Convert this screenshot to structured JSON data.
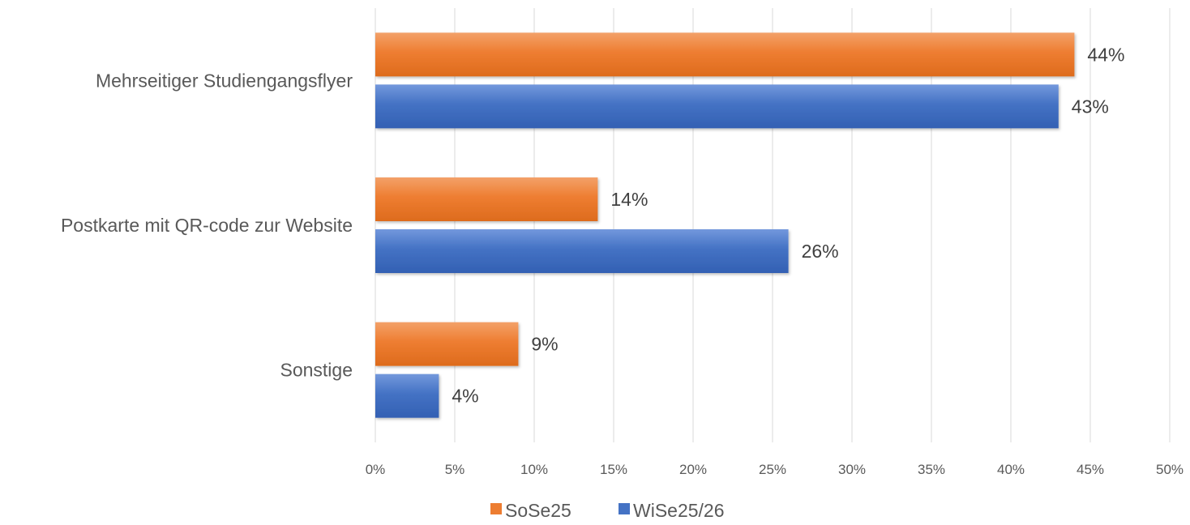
{
  "chart_data": {
    "type": "bar",
    "orientation": "horizontal",
    "categories": [
      "Mehrseitiger Studiengangsflyer",
      "Postkarte mit QR-code zur Website",
      "Sonstige"
    ],
    "series": [
      {
        "name": "SoSe25",
        "color": "#ed7d31",
        "values": [
          44,
          14,
          9
        ],
        "labels": [
          "44%",
          "14%",
          "9%"
        ]
      },
      {
        "name": "WiSe25/26",
        "color": "#4472c4",
        "values": [
          43,
          26,
          4
        ],
        "labels": [
          "43%",
          "26%",
          "4%"
        ]
      }
    ],
    "xlim": [
      0,
      50
    ],
    "x_ticks": [
      0,
      5,
      10,
      15,
      20,
      25,
      30,
      35,
      40,
      45,
      50
    ],
    "x_tick_labels": [
      "0%",
      "5%",
      "10%",
      "15%",
      "20%",
      "25%",
      "30%",
      "35%",
      "40%",
      "45%",
      "50%"
    ],
    "grid": true,
    "legend_position": "bottom",
    "title": "",
    "xlabel": "",
    "ylabel": ""
  }
}
